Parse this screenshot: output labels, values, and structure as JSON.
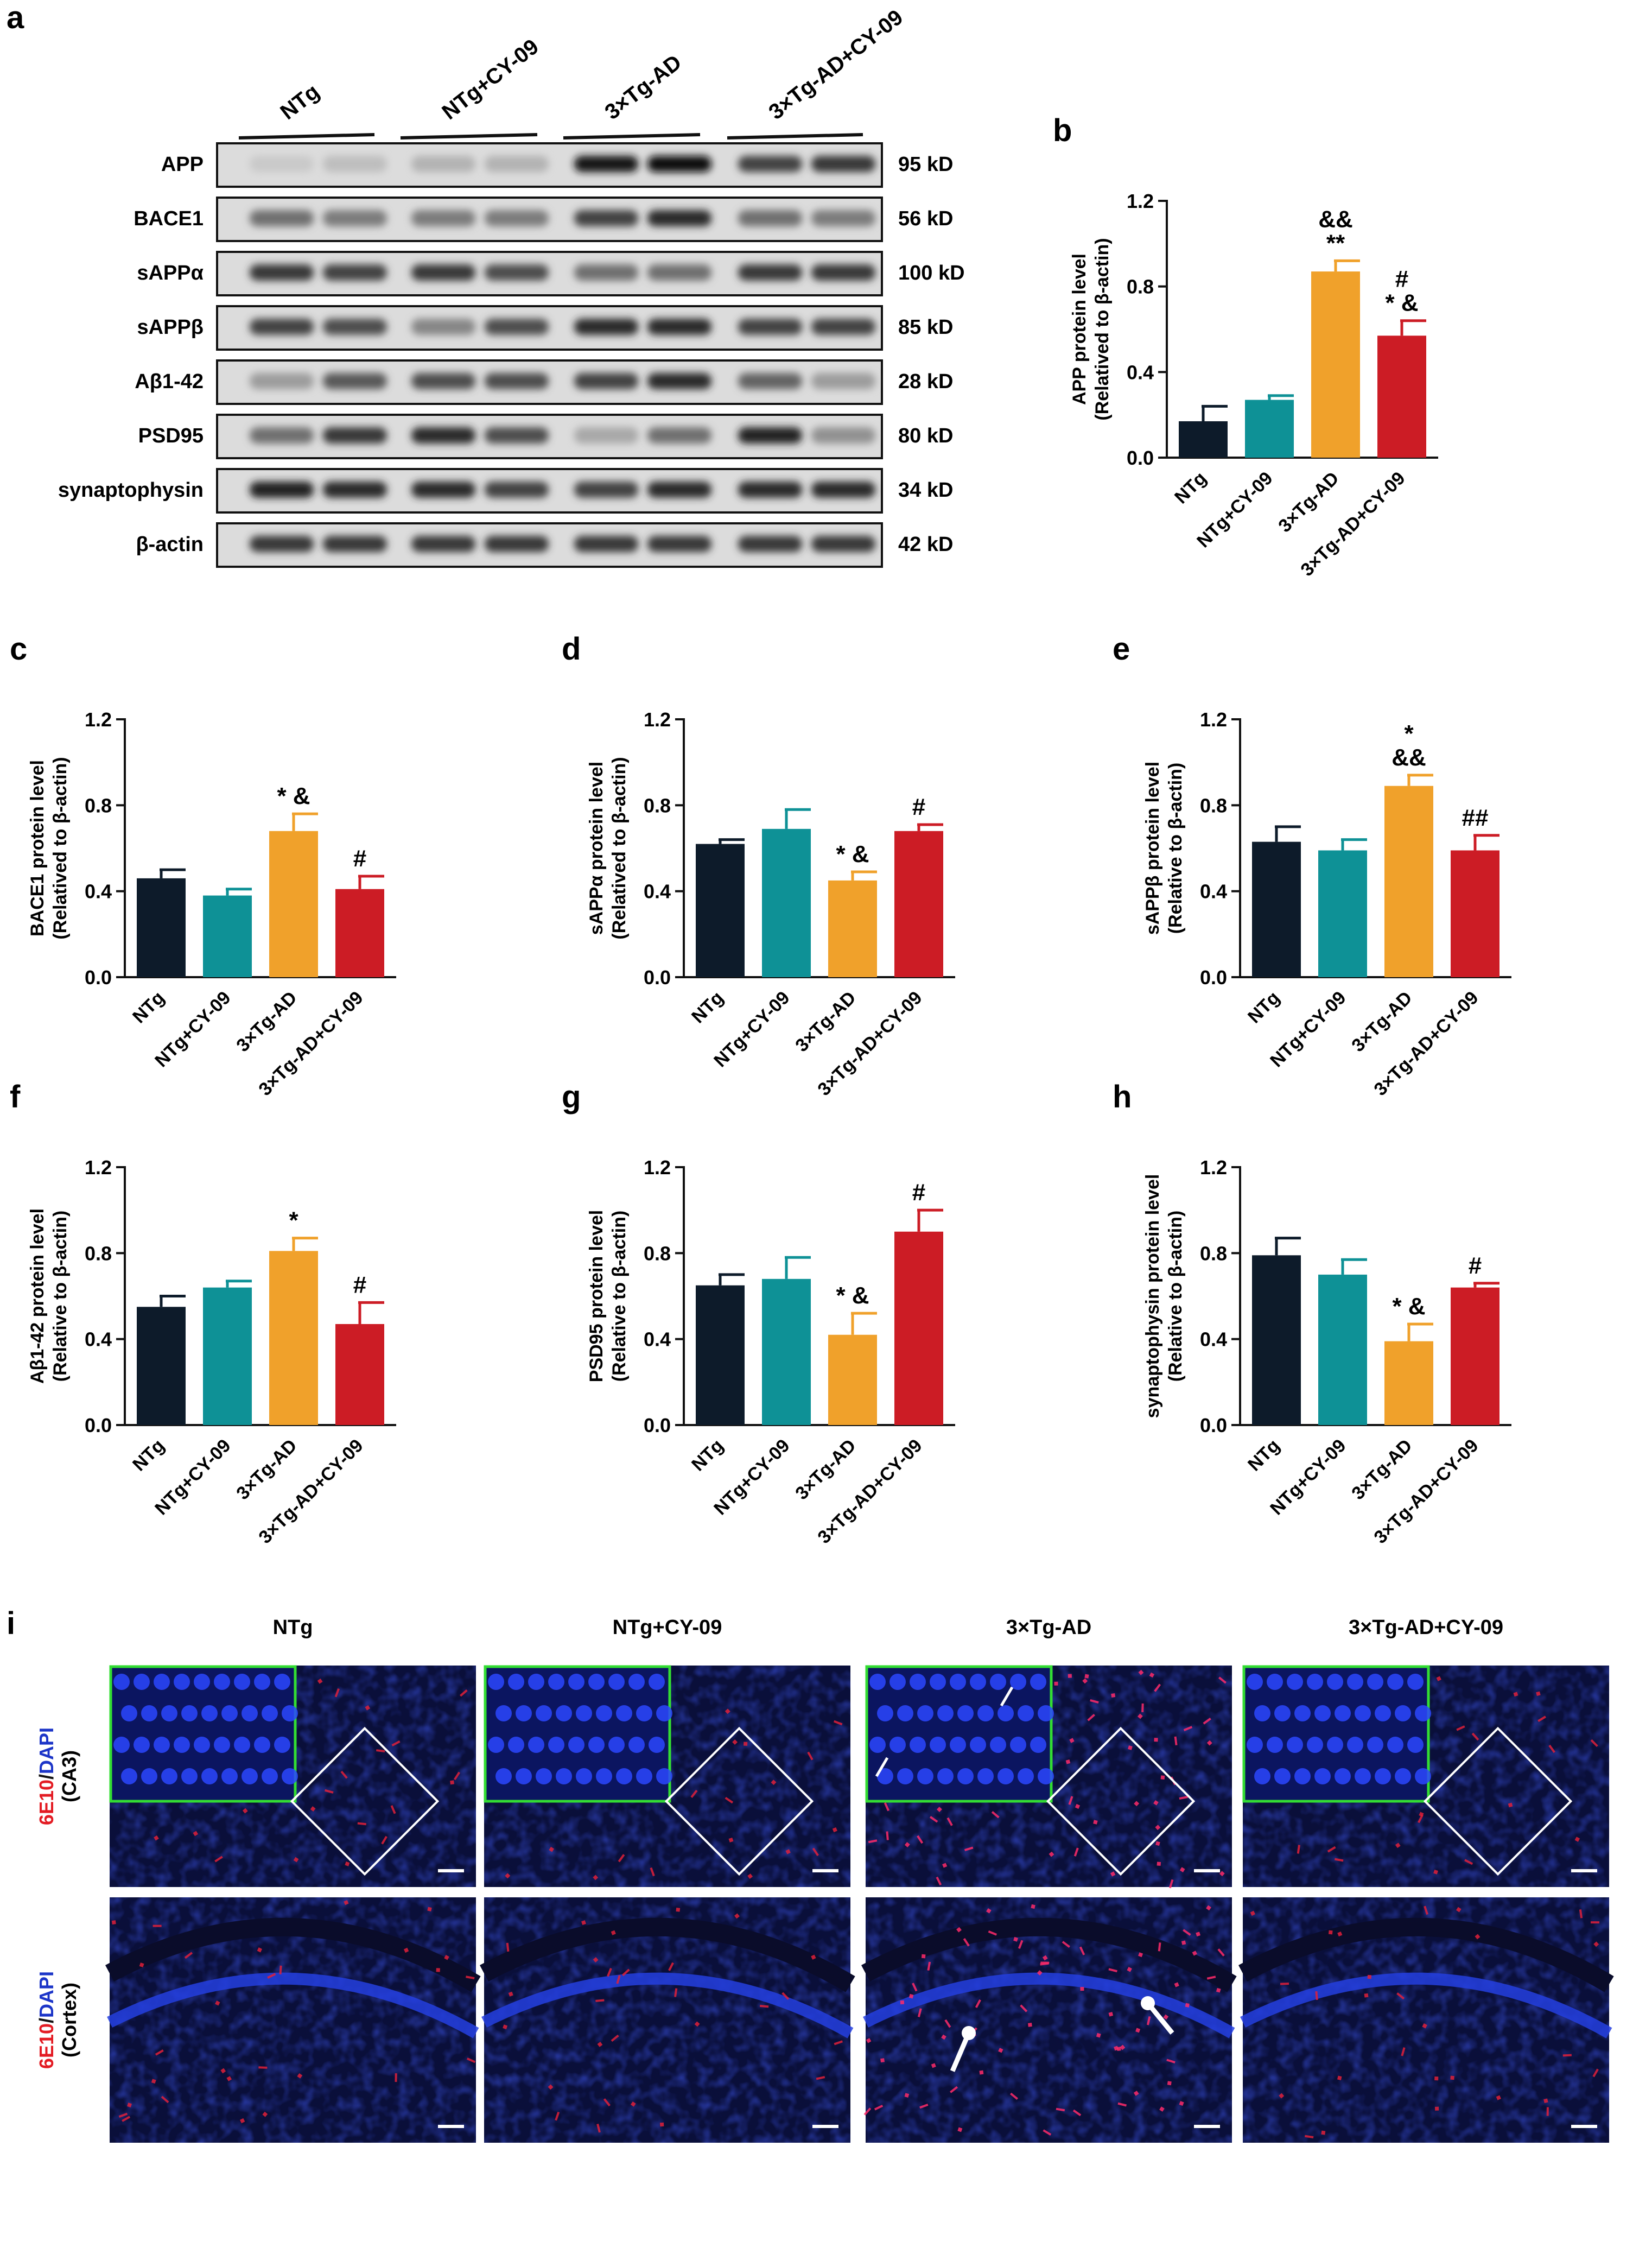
{
  "groups": [
    "NTg",
    "NTg+CY-09",
    "3×Tg-AD",
    "3×Tg-AD+CY-09"
  ],
  "colors": {
    "NTg": "#0d1b2a",
    "NTg+CY-09": "#0e9196",
    "3×Tg-AD": "#f0a12b",
    "3×Tg-AD+CY-09": "#cc1c25",
    "scalebar": "#ffffff",
    "inset_border": "#33dd33"
  },
  "panel_a": {
    "label": "a",
    "lane_headers": [
      "NTg",
      "NTg+CY-09",
      "3×Tg-AD",
      "3×Tg-AD+CY-09"
    ],
    "rows": [
      {
        "protein": "APP",
        "size": "95 kD"
      },
      {
        "protein": "BACE1",
        "size": "56 kD"
      },
      {
        "protein": "sAPPα",
        "size": "100 kD"
      },
      {
        "protein": "sAPPβ",
        "size": "85 kD"
      },
      {
        "protein": "Aβ1-42",
        "size": "28 kD"
      },
      {
        "protein": "PSD95",
        "size": "80 kD"
      },
      {
        "protein": "synaptophysin",
        "size": "34 kD"
      },
      {
        "protein": "β-actin",
        "size": "42 kD"
      }
    ],
    "band_intensity": [
      [
        0.15,
        0.2,
        0.25,
        0.25,
        0.95,
        1.0,
        0.75,
        0.8
      ],
      [
        0.55,
        0.5,
        0.5,
        0.5,
        0.75,
        0.85,
        0.55,
        0.5
      ],
      [
        0.8,
        0.75,
        0.8,
        0.7,
        0.55,
        0.55,
        0.8,
        0.8
      ],
      [
        0.75,
        0.7,
        0.45,
        0.7,
        0.85,
        0.85,
        0.75,
        0.75
      ],
      [
        0.35,
        0.65,
        0.7,
        0.7,
        0.75,
        0.85,
        0.6,
        0.35
      ],
      [
        0.55,
        0.8,
        0.85,
        0.7,
        0.3,
        0.55,
        0.9,
        0.4
      ],
      [
        0.9,
        0.85,
        0.85,
        0.75,
        0.75,
        0.85,
        0.85,
        0.85
      ],
      [
        0.8,
        0.8,
        0.8,
        0.8,
        0.8,
        0.8,
        0.8,
        0.8
      ]
    ]
  },
  "chart_data": [
    {
      "panel": "b",
      "type": "bar",
      "ylabel1": "APP protein level",
      "ylabel2": "(Relatived to β-actin)",
      "categories": [
        "NTg",
        "NTg+CY-09",
        "3×Tg-AD",
        "3×Tg-AD+CY-09"
      ],
      "values": [
        0.17,
        0.27,
        0.87,
        0.57
      ],
      "errors": [
        0.07,
        0.02,
        0.05,
        0.07
      ],
      "yticks": [
        "0.0",
        "0.4",
        "0.8",
        "1.2"
      ],
      "ylim": [
        0,
        1.2
      ],
      "annotations": [
        "",
        "",
        "&&\n**",
        "#\n* &"
      ]
    },
    {
      "panel": "c",
      "type": "bar",
      "ylabel1": "BACE1 protein level",
      "ylabel2": "(Relatived to β-actin)",
      "categories": [
        "NTg",
        "NTg+CY-09",
        "3×Tg-AD",
        "3×Tg-AD+CY-09"
      ],
      "values": [
        0.46,
        0.38,
        0.68,
        0.41
      ],
      "errors": [
        0.04,
        0.03,
        0.08,
        0.06
      ],
      "yticks": [
        "0.0",
        "0.4",
        "0.8",
        "1.2"
      ],
      "ylim": [
        0,
        1.2
      ],
      "annotations": [
        "",
        "",
        "* &",
        "#"
      ]
    },
    {
      "panel": "d",
      "type": "bar",
      "ylabel1": "sAPPα protein level",
      "ylabel2": "(Relatived to β-actin)",
      "categories": [
        "NTg",
        "NTg+CY-09",
        "3×Tg-AD",
        "3×Tg-AD+CY-09"
      ],
      "values": [
        0.62,
        0.69,
        0.45,
        0.68
      ],
      "errors": [
        0.02,
        0.09,
        0.04,
        0.03
      ],
      "yticks": [
        "0.0",
        "0.4",
        "0.8",
        "1.2"
      ],
      "ylim": [
        0,
        1.2
      ],
      "annotations": [
        "",
        "",
        "* &",
        "#"
      ]
    },
    {
      "panel": "e",
      "type": "bar",
      "ylabel1": "sAPPβ protein level",
      "ylabel2": "(Relative to β-actin)",
      "categories": [
        "NTg",
        "NTg+CY-09",
        "3×Tg-AD",
        "3×Tg-AD+CY-09"
      ],
      "values": [
        0.63,
        0.59,
        0.89,
        0.59
      ],
      "errors": [
        0.07,
        0.05,
        0.05,
        0.07
      ],
      "yticks": [
        "0.0",
        "0.4",
        "0.8",
        "1.2"
      ],
      "ylim": [
        0,
        1.2
      ],
      "annotations": [
        "",
        "",
        "*\n&&",
        "##"
      ]
    },
    {
      "panel": "f",
      "type": "bar",
      "ylabel1": "Aβ1-42 protein level",
      "ylabel2": "(Relative to β-actin)",
      "categories": [
        "NTg",
        "NTg+CY-09",
        "3×Tg-AD",
        "3×Tg-AD+CY-09"
      ],
      "values": [
        0.55,
        0.64,
        0.81,
        0.47
      ],
      "errors": [
        0.05,
        0.03,
        0.06,
        0.1
      ],
      "yticks": [
        "0.0",
        "0.4",
        "0.8",
        "1.2"
      ],
      "ylim": [
        0,
        1.2
      ],
      "annotations": [
        "",
        "",
        "*",
        "#"
      ]
    },
    {
      "panel": "g",
      "type": "bar",
      "ylabel1": "PSD95 protein level",
      "ylabel2": "(Relative to β-actin)",
      "categories": [
        "NTg",
        "NTg+CY-09",
        "3×Tg-AD",
        "3×Tg-AD+CY-09"
      ],
      "values": [
        0.65,
        0.68,
        0.42,
        0.9
      ],
      "errors": [
        0.05,
        0.1,
        0.1,
        0.1
      ],
      "yticks": [
        "0.0",
        "0.4",
        "0.8",
        "1.2"
      ],
      "ylim": [
        0,
        1.2
      ],
      "annotations": [
        "",
        "",
        "* &",
        "#"
      ]
    },
    {
      "panel": "h",
      "type": "bar",
      "ylabel1": "synaptophysin protein level",
      "ylabel2": "(Relative to β-actin)",
      "categories": [
        "NTg",
        "NTg+CY-09",
        "3×Tg-AD",
        "3×Tg-AD+CY-09"
      ],
      "values": [
        0.79,
        0.7,
        0.39,
        0.64
      ],
      "errors": [
        0.08,
        0.07,
        0.08,
        0.02
      ],
      "yticks": [
        "0.0",
        "0.4",
        "0.8",
        "1.2"
      ],
      "ylim": [
        0,
        1.2
      ],
      "annotations": [
        "",
        "",
        "* &",
        "#"
      ]
    }
  ],
  "panel_i": {
    "label": "i",
    "column_titles": [
      "NTg",
      "NTg+CY-09",
      "3×Tg-AD",
      "3×Tg-AD+CY-09"
    ],
    "row_labels": [
      {
        "stain_red": "6E10",
        "stain_sep": "/",
        "stain_blue": "DAPI",
        "region": "(CA3)"
      },
      {
        "stain_red": "6E10",
        "stain_sep": "/",
        "stain_blue": "DAPI",
        "region": "(Cortex)"
      }
    ]
  }
}
